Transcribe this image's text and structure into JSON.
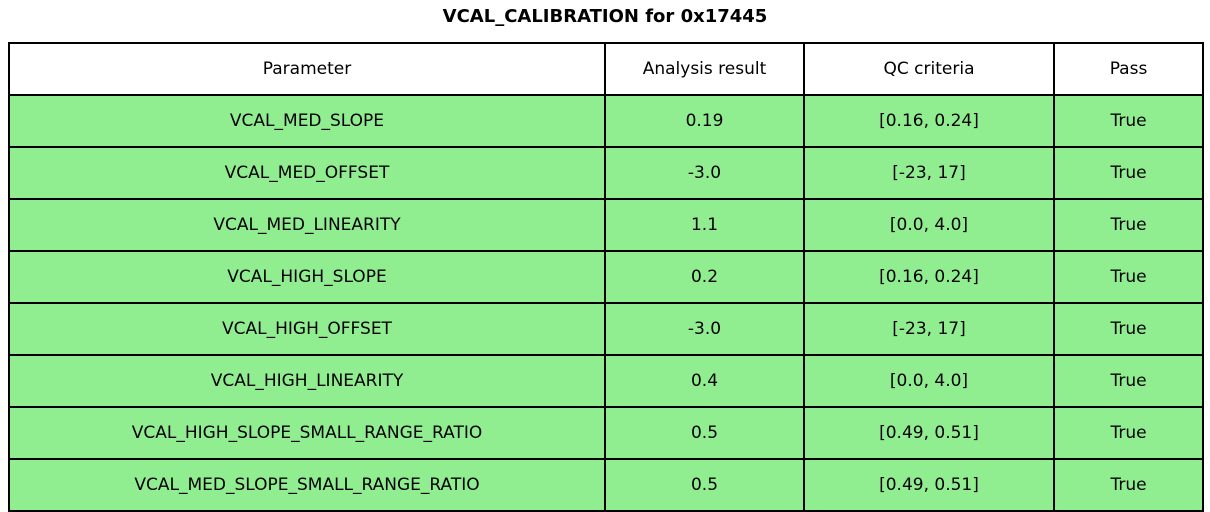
{
  "title": "VCAL_CALIBRATION for 0x17445",
  "colors": {
    "pass_row_background": "#90EE90",
    "header_background": "#FFFFFF",
    "border": "#000000",
    "text": "#000000",
    "page_background": "#FFFFFF"
  },
  "table": {
    "columns": [
      "Parameter",
      "Analysis result",
      "QC criteria",
      "Pass"
    ],
    "rows": [
      {
        "parameter": "VCAL_MED_SLOPE",
        "analysis_result": "0.19",
        "qc_criteria": "[0.16, 0.24]",
        "pass": "True"
      },
      {
        "parameter": "VCAL_MED_OFFSET",
        "analysis_result": "-3.0",
        "qc_criteria": "[-23, 17]",
        "pass": "True"
      },
      {
        "parameter": "VCAL_MED_LINEARITY",
        "analysis_result": "1.1",
        "qc_criteria": "[0.0, 4.0]",
        "pass": "True"
      },
      {
        "parameter": "VCAL_HIGH_SLOPE",
        "analysis_result": "0.2",
        "qc_criteria": "[0.16, 0.24]",
        "pass": "True"
      },
      {
        "parameter": "VCAL_HIGH_OFFSET",
        "analysis_result": "-3.0",
        "qc_criteria": "[-23, 17]",
        "pass": "True"
      },
      {
        "parameter": "VCAL_HIGH_LINEARITY",
        "analysis_result": "0.4",
        "qc_criteria": "[0.0, 4.0]",
        "pass": "True"
      },
      {
        "parameter": "VCAL_HIGH_SLOPE_SMALL_RANGE_RATIO",
        "analysis_result": "0.5",
        "qc_criteria": "[0.49, 0.51]",
        "pass": "True"
      },
      {
        "parameter": "VCAL_MED_SLOPE_SMALL_RANGE_RATIO",
        "analysis_result": "0.5",
        "qc_criteria": "[0.49, 0.51]",
        "pass": "True"
      }
    ]
  },
  "chart_data": {
    "type": "table",
    "title": "VCAL_CALIBRATION for 0x17445",
    "columns": [
      "Parameter",
      "Analysis result",
      "QC criteria",
      "Pass"
    ],
    "rows": [
      {
        "parameter": "VCAL_MED_SLOPE",
        "analysis_result": 0.19,
        "qc_criteria": [
          0.16,
          0.24
        ],
        "pass": true
      },
      {
        "parameter": "VCAL_MED_OFFSET",
        "analysis_result": -3.0,
        "qc_criteria": [
          -23,
          17
        ],
        "pass": true
      },
      {
        "parameter": "VCAL_MED_LINEARITY",
        "analysis_result": 1.1,
        "qc_criteria": [
          0.0,
          4.0
        ],
        "pass": true
      },
      {
        "parameter": "VCAL_HIGH_SLOPE",
        "analysis_result": 0.2,
        "qc_criteria": [
          0.16,
          0.24
        ],
        "pass": true
      },
      {
        "parameter": "VCAL_HIGH_OFFSET",
        "analysis_result": -3.0,
        "qc_criteria": [
          -23,
          17
        ],
        "pass": true
      },
      {
        "parameter": "VCAL_HIGH_LINEARITY",
        "analysis_result": 0.4,
        "qc_criteria": [
          0.0,
          4.0
        ],
        "pass": true
      },
      {
        "parameter": "VCAL_HIGH_SLOPE_SMALL_RANGE_RATIO",
        "analysis_result": 0.5,
        "qc_criteria": [
          0.49,
          0.51
        ],
        "pass": true
      },
      {
        "parameter": "VCAL_MED_SLOPE_SMALL_RANGE_RATIO",
        "analysis_result": 0.5,
        "qc_criteria": [
          0.49,
          0.51
        ],
        "pass": true
      }
    ],
    "layout": {
      "header_background": "#FFFFFF",
      "data_row_background": "#90EE90",
      "grid": true,
      "all_rows_pass": true
    }
  }
}
